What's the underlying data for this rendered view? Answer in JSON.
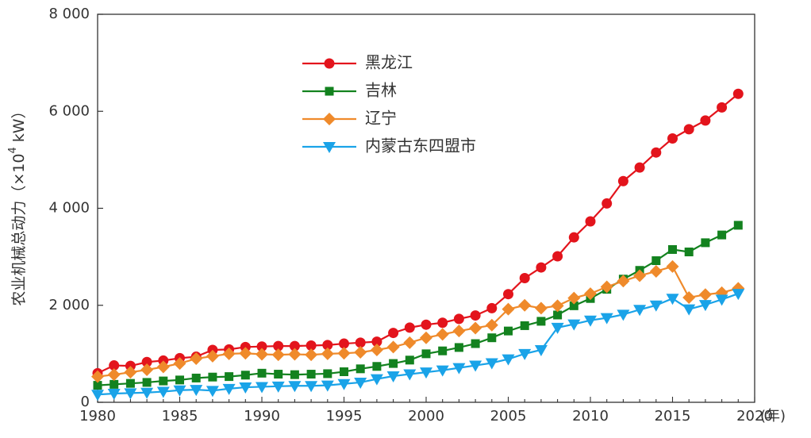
{
  "chart_data": {
    "type": "line",
    "title": "",
    "xlabel": "(年)",
    "ylabel": "农业机械总动力（×10⁴ kW）",
    "ylabel_parts": {
      "text": "农业机械总动力（×10",
      "sup": "4",
      "unit": " kW）"
    },
    "xlim": [
      1980,
      2020
    ],
    "ylim": [
      0,
      8000
    ],
    "x_ticks": [
      1980,
      1985,
      1990,
      1995,
      2000,
      2005,
      2010,
      2015,
      2020
    ],
    "x_tick_labels": [
      "1980",
      "1985",
      "1990",
      "1995",
      "2000",
      "2005",
      "2010",
      "2015",
      "2020"
    ],
    "y_ticks": [
      0,
      2000,
      4000,
      6000,
      8000
    ],
    "y_tick_labels": [
      "0",
      "2 000",
      "4 000",
      "6 000",
      "8 000"
    ],
    "grid": false,
    "legend_position": "top-center",
    "x": [
      1980,
      1981,
      1982,
      1983,
      1984,
      1985,
      1986,
      1987,
      1988,
      1989,
      1990,
      1991,
      1992,
      1993,
      1994,
      1995,
      1996,
      1997,
      1998,
      1999,
      2000,
      2001,
      2002,
      2003,
      2004,
      2005,
      2006,
      2007,
      2008,
      2009,
      2010,
      2011,
      2012,
      2013,
      2014,
      2015,
      2016,
      2017,
      2018,
      2019
    ],
    "series": [
      {
        "name": "黑龙江",
        "color": "#e3141c",
        "marker": "circle",
        "values": [
          600,
          760,
          750,
          830,
          860,
          910,
          940,
          1080,
          1090,
          1140,
          1150,
          1160,
          1160,
          1170,
          1180,
          1210,
          1230,
          1250,
          1430,
          1540,
          1600,
          1640,
          1720,
          1790,
          1940,
          2230,
          2560,
          2780,
          3010,
          3400,
          3730,
          4100,
          4560,
          4840,
          5150,
          5440,
          5630,
          5810,
          6080,
          6360
        ]
      },
      {
        "name": "吉林",
        "color": "#13821f",
        "marker": "square",
        "values": [
          350,
          370,
          390,
          410,
          440,
          460,
          500,
          520,
          530,
          560,
          600,
          580,
          570,
          580,
          590,
          630,
          690,
          740,
          800,
          870,
          1000,
          1060,
          1130,
          1210,
          1330,
          1470,
          1580,
          1670,
          1800,
          1990,
          2140,
          2330,
          2540,
          2720,
          2920,
          3150,
          3100,
          3290,
          3450,
          3650
        ]
      },
      {
        "name": "辽宁",
        "color": "#ef8a2b",
        "marker": "diamond",
        "values": [
          530,
          570,
          620,
          670,
          730,
          800,
          900,
          950,
          1000,
          1010,
          990,
          980,
          990,
          980,
          1000,
          1010,
          1030,
          1080,
          1140,
          1230,
          1330,
          1400,
          1470,
          1530,
          1590,
          1920,
          2000,
          1940,
          1990,
          2150,
          2240,
          2380,
          2500,
          2610,
          2700,
          2800,
          2160,
          2220,
          2260,
          2350
        ]
      },
      {
        "name": "内蒙古东四盟市",
        "color": "#1aa3e8",
        "marker": "triangle-down",
        "values": [
          160,
          180,
          190,
          200,
          220,
          250,
          260,
          240,
          280,
          310,
          320,
          330,
          340,
          340,
          350,
          380,
          410,
          480,
          540,
          580,
          620,
          660,
          710,
          760,
          810,
          890,
          1000,
          1080,
          1540,
          1610,
          1690,
          1740,
          1810,
          1910,
          2000,
          2140,
          1920,
          2010,
          2120,
          2240
        ]
      }
    ]
  }
}
